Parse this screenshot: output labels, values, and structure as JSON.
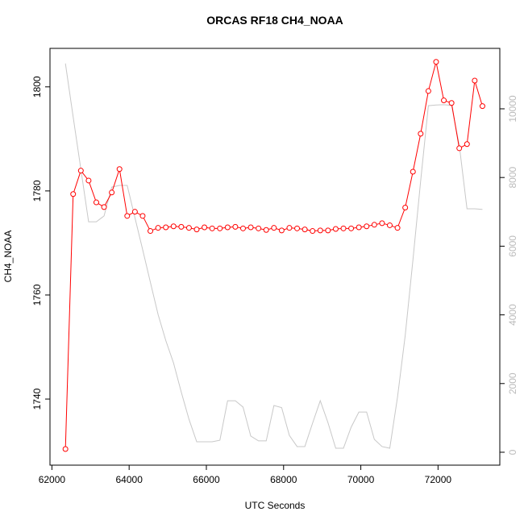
{
  "chart_data": {
    "type": "line",
    "title": "ORCAS RF18 CH4_NOAA",
    "x_label": "UTC Seconds",
    "y_label": "CH4_NOAA",
    "x": [
      62350,
      62550,
      62750,
      62950,
      63150,
      63350,
      63550,
      63750,
      63950,
      64150,
      64350,
      64550,
      64750,
      64950,
      65150,
      65350,
      65550,
      65750,
      65950,
      66150,
      66350,
      66550,
      66750,
      66950,
      67150,
      67350,
      67550,
      67750,
      67950,
      68150,
      68350,
      68550,
      68750,
      68950,
      69150,
      69350,
      69550,
      69750,
      69950,
      70150,
      70350,
      70550,
      70750,
      70950,
      71150,
      71350,
      71550,
      71750,
      71950,
      72150,
      72350,
      72550,
      72750,
      72950,
      73150
    ],
    "series": [
      {
        "color": "#ff0000",
        "axis": "y",
        "markers": true,
        "values": [
          1730.4,
          1779.4,
          1783.9,
          1782,
          1777.8,
          1776.9,
          1779.7,
          1784.2,
          1775.2,
          1776,
          1775.2,
          1772.3,
          1772.9,
          1773,
          1773.2,
          1773.1,
          1772.9,
          1772.6,
          1773,
          1772.8,
          1772.8,
          1773,
          1773.1,
          1772.8,
          1773,
          1772.8,
          1772.5,
          1772.9,
          1772.4,
          1772.9,
          1772.8,
          1772.6,
          1772.3,
          1772.4,
          1772.4,
          1772.7,
          1772.8,
          1772.8,
          1773,
          1773.2,
          1773.5,
          1773.8,
          1773.4,
          1772.9,
          1776.8,
          1783.7,
          1791,
          1799.2,
          1804.8,
          1797.4,
          1796.9,
          1788.2,
          1789,
          1801.2,
          1796.3
        ]
      },
      {
        "color": "#c8c8c8",
        "axis": "y2",
        "markers": false,
        "values": [
          11320,
          9765,
          8240,
          6710,
          6710,
          6880,
          7720,
          7770,
          7770,
          6830,
          5900,
          4950,
          4010,
          3250,
          2600,
          1750,
          960,
          305,
          305,
          305,
          350,
          1500,
          1500,
          1315,
          470,
          330,
          330,
          1360,
          1300,
          490,
          165,
          165,
          845,
          1500,
          860,
          117,
          117,
          730,
          1170,
          1170,
          375,
          165,
          117,
          1600,
          3400,
          5600,
          7900,
          10090,
          10110,
          10120,
          10100,
          8940,
          7090,
          7090,
          7070
        ]
      }
    ],
    "xlim": [
      61950,
      73600
    ],
    "xticks": [
      62000,
      64000,
      66000,
      68000,
      70000,
      72000
    ],
    "ylim": [
      1727.3,
      1807.4
    ],
    "yticks": [
      1740,
      1760,
      1780,
      1800
    ],
    "y2lim": [
      -376,
      11760
    ],
    "y2ticks": [
      0,
      2000,
      4000,
      6000,
      8000,
      10000
    ]
  }
}
